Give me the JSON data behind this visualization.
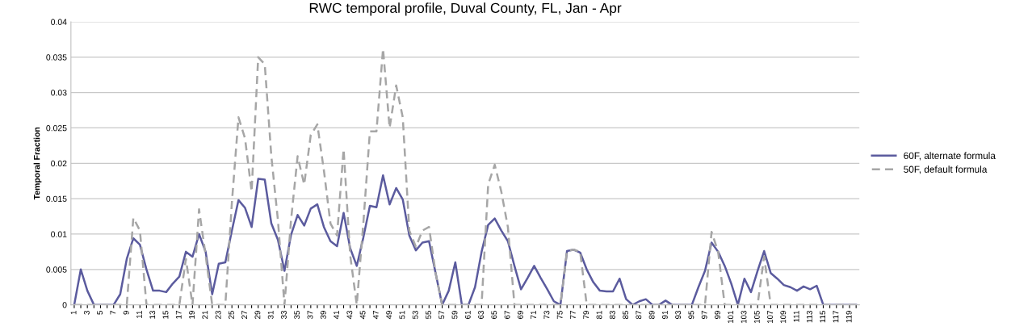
{
  "chart_data": {
    "type": "line",
    "title": "RWC temporal profile, Duval County, FL, Jan - Apr",
    "ylabel": "Temporal Fraction",
    "categories": [
      "1",
      null,
      "3",
      null,
      "5",
      null,
      "7",
      null,
      "9",
      null,
      "11",
      null,
      "13",
      null,
      "15",
      null,
      "17",
      null,
      "19",
      null,
      "21",
      null,
      "23",
      null,
      "25",
      null,
      "27",
      null,
      "29",
      null,
      "31",
      null,
      "33",
      null,
      "35",
      null,
      "37",
      null,
      "39",
      null,
      "41",
      null,
      "43",
      null,
      "45",
      null,
      "47",
      null,
      "49",
      null,
      "51",
      null,
      "53",
      null,
      "55",
      null,
      "57",
      null,
      "59",
      null,
      "61",
      null,
      "63",
      null,
      "65",
      null,
      "67",
      null,
      "69",
      null,
      "71",
      null,
      "73",
      null,
      "75",
      null,
      "77",
      null,
      "79",
      null,
      "81",
      null,
      "83",
      null,
      "85",
      null,
      "87",
      null,
      "89",
      null,
      "91",
      null,
      "93",
      null,
      "95",
      null,
      "97",
      null,
      "99",
      null,
      "101",
      null,
      "103",
      null,
      "105",
      null,
      "107",
      null,
      "109",
      null,
      "111",
      null,
      "113",
      null,
      "115",
      null,
      "117",
      null,
      "119",
      null
    ],
    "series": [
      {
        "name": "60F, alternate formula",
        "color": "#5b5b9e",
        "line_style": "solid",
        "values": [
          0,
          0.005,
          0.002,
          0,
          0,
          0,
          0,
          0.0015,
          0.0065,
          0.0094,
          0.0085,
          0.005,
          0.002,
          0.002,
          0.0018,
          0.003,
          0.004,
          0.0075,
          0.0068,
          0.01,
          0.0075,
          0.0015,
          0.0058,
          0.006,
          0.0105,
          0.0148,
          0.0137,
          0.011,
          0.0178,
          0.0177,
          0.0115,
          0.0092,
          0.0048,
          0.0099,
          0.0127,
          0.0112,
          0.0136,
          0.0142,
          0.011,
          0.009,
          0.0083,
          0.013,
          0.008,
          0.0055,
          0.0095,
          0.014,
          0.0138,
          0.0183,
          0.0142,
          0.0165,
          0.0149,
          0.0098,
          0.0077,
          0.0088,
          0.009,
          0.0045,
          0,
          0.002,
          0.006,
          0,
          0,
          0.0025,
          0.0075,
          0.0113,
          0.0122,
          0.0105,
          0.009,
          0.0055,
          0.0022,
          0.0038,
          0.0055,
          0.0038,
          0.0022,
          0.0005,
          0,
          0.0076,
          0.0078,
          0.0074,
          0.005,
          0.0032,
          0.002,
          0.0019,
          0.0019,
          0.0037,
          0.0008,
          0,
          0.0005,
          0.0008,
          0,
          0,
          0.0006,
          0,
          0,
          0,
          0,
          0.0025,
          0.0048,
          0.0088,
          0.0075,
          0.0055,
          0.003,
          0,
          0.0037,
          0.0018,
          0.0048,
          0.0076,
          0.0045,
          0.0037,
          0.0028,
          0.0025,
          0.002,
          0.0026,
          0.0022,
          0.0027,
          0,
          0,
          0,
          0,
          0,
          0
        ]
      },
      {
        "name": "50F, default formula",
        "color": "#a6a6a6",
        "line_style": "dashed",
        "values": [
          0,
          0,
          0,
          0,
          0,
          0,
          0,
          0,
          0,
          0.0123,
          0.0105,
          0,
          0,
          0,
          0,
          0,
          0,
          0.0065,
          0,
          0.0135,
          0.007,
          0,
          0,
          0,
          0.0145,
          0.0265,
          0.0235,
          0.016,
          0.035,
          0.034,
          0.021,
          0.012,
          0,
          0.012,
          0.021,
          0.017,
          0.024,
          0.0255,
          0.019,
          0.0115,
          0.0098,
          0.022,
          0.007,
          0,
          0.0115,
          0.0245,
          0.0245,
          0.0362,
          0.025,
          0.031,
          0.0265,
          0.0105,
          0.0082,
          0.0105,
          0.011,
          0.0045,
          0,
          0,
          0,
          0,
          0,
          0,
          0,
          0.017,
          0.0198,
          0.016,
          0.011,
          0,
          0,
          0,
          0,
          0,
          0,
          0,
          0,
          0.0076,
          0.0078,
          0.0075,
          0,
          0,
          0,
          0,
          0,
          0,
          0,
          0,
          0,
          0,
          0,
          0,
          0,
          0,
          0,
          0,
          0,
          0,
          0,
          0.0103,
          0.0075,
          0,
          0,
          0,
          0,
          0,
          0,
          0.0068,
          0,
          0,
          0,
          0,
          0,
          0,
          0,
          0,
          0,
          0,
          0,
          0,
          0,
          0
        ]
      }
    ],
    "ylim": [
      0,
      0.04
    ],
    "yticks": [
      0,
      0.005,
      0.01,
      0.015,
      0.02,
      0.025,
      0.03,
      0.035,
      0.04
    ],
    "grid": "y",
    "legend": "right",
    "marker": "none"
  }
}
